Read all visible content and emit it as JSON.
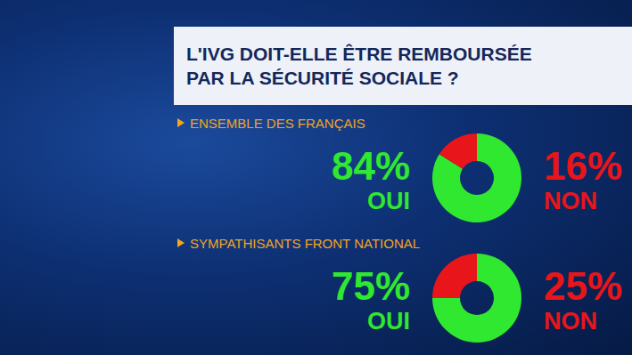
{
  "title": [
    "L'IVG DOIT-ELLE ÊTRE REMBOURSÉE",
    "PAR LA SÉCURITÉ SOCIALE ?"
  ],
  "chart_data": [
    {
      "type": "pie",
      "title": "ENSEMBLE DES FRANÇAIS",
      "categories": [
        "OUI",
        "NON"
      ],
      "values": [
        84,
        16
      ],
      "value_labels": [
        "84%",
        "16%"
      ],
      "colors": [
        "#2fe82f",
        "#e8161a"
      ],
      "data_labels": true
    },
    {
      "type": "pie",
      "title": "SYMPATHISANTS FRONT NATIONAL",
      "categories": [
        "OUI",
        "NON"
      ],
      "values": [
        75,
        25
      ],
      "value_labels": [
        "75%",
        "25%"
      ],
      "colors": [
        "#2fe82f",
        "#e8161a"
      ],
      "data_labels": true
    }
  ]
}
